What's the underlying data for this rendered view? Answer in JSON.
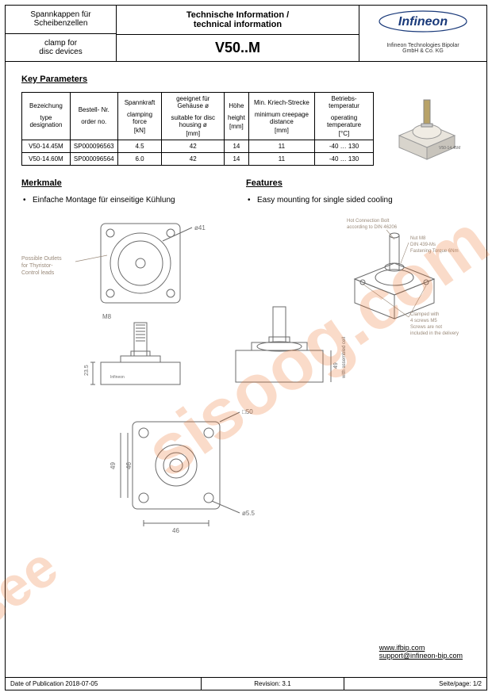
{
  "header": {
    "left_de_top": "Spannkappen für Scheibenzellen",
    "left_en_bot1": "clamp for",
    "left_en_bot2": "disc devices",
    "mid_top_de": "Technische Information /",
    "mid_top_en": "technical information",
    "part": "V50..M",
    "logo_text": "Infineon",
    "company1": "Infineon Technologies Bipolar",
    "company2": "GmbH & Co. KG"
  },
  "sections": {
    "key_params": "Key Parameters",
    "merkmale": "Merkmale",
    "features": "Features"
  },
  "table": {
    "headers": [
      {
        "de": "Bezeichung",
        "en": "type designation",
        "unit": ""
      },
      {
        "de": "Bestell- Nr.",
        "en": "order no.",
        "unit": ""
      },
      {
        "de": "Spannkraft",
        "en": "clamping force",
        "unit": "[kN]"
      },
      {
        "de": "geeignet für Gehäuse ø",
        "en": "suitable for disc housing ø",
        "unit": "[mm]"
      },
      {
        "de": "Höhe",
        "en": "height",
        "unit": "[mm]"
      },
      {
        "de": "Min. Kriech-Strecke",
        "en": "minimum creepage distance",
        "unit": "[mm]"
      },
      {
        "de": "Betriebs-temperatur",
        "en": "operating temperature",
        "unit": "[°C]"
      }
    ],
    "rows": [
      [
        "V50-14.45M",
        "SP000096563",
        "4.5",
        "42",
        "14",
        "11",
        "-40 … 130"
      ],
      [
        "V50-14.60M",
        "SP000096564",
        "6.0",
        "42",
        "14",
        "11",
        "-40 … 130"
      ]
    ]
  },
  "bullets": {
    "de": "Einfache Montage für einseitige Kühlung",
    "en": "Easy mounting for single sided cooling"
  },
  "drawings": {
    "top_view": {
      "diameter_label": "ø41",
      "outlet_note1": "Possible Outlets",
      "outlet_note2": "for Thyristor-",
      "outlet_note3": "Control leads",
      "thread_label": "M8"
    },
    "side_view": {
      "height_label": "23.5"
    },
    "iso_view": {
      "note_top1": "Hot Connection Bolt",
      "note_top2": "according to DIN 46206",
      "note_mid1": "Nut M8",
      "note_mid2": "DIN 439-Ms",
      "note_mid3": "Fastening Torque 6Nm",
      "note_bot1": "Clamped with",
      "note_bot2": "4 screws M5",
      "note_bot3": "Screws are not",
      "note_bot4": "included in the delivery",
      "side_dim": "49",
      "side_note": "with assembled cell"
    },
    "bottom_view": {
      "outer": "□50",
      "hole": "ø5.5",
      "dim_49": "49",
      "dim_46v": "46",
      "dim_46h": "46"
    },
    "product_label": "V50-14.45M"
  },
  "links": {
    "url": "www.ifbip.com",
    "email": "support@infineon-bip.com"
  },
  "footer": {
    "date": "Date of Publication 2018-07-05",
    "rev": "Revision: 3.1",
    "page": "Seite/page: 1/2"
  },
  "watermark": {
    "text1": "isee",
    "text2": "sisoog.com"
  },
  "colors": {
    "brand": "#1a3a7a",
    "watermark": "rgba(236,112,40,0.25)",
    "line": "#000000",
    "draw": "#6b6b6b",
    "note": "#9a8a7a"
  }
}
